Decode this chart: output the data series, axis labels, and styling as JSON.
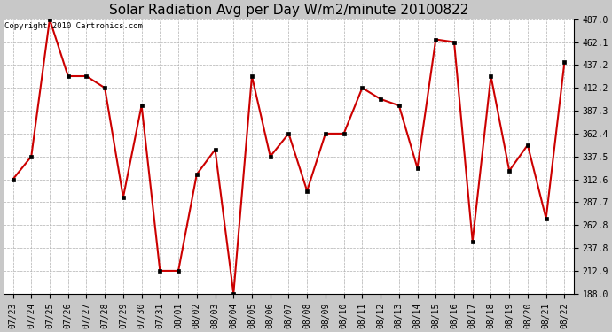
{
  "title": "Solar Radiation Avg per Day W/m2/minute 20100822",
  "copyright_text": "Copyright 2010 Cartronics.com",
  "labels": [
    "07/23",
    "07/24",
    "07/25",
    "07/26",
    "07/27",
    "07/28",
    "07/29",
    "07/30",
    "07/31",
    "08/01",
    "08/02",
    "08/03",
    "08/04",
    "08/05",
    "08/06",
    "08/07",
    "08/08",
    "08/09",
    "08/10",
    "08/11",
    "08/12",
    "08/13",
    "08/14",
    "08/15",
    "08/16",
    "08/17",
    "08/18",
    "08/19",
    "08/20",
    "08/21",
    "08/22"
  ],
  "values": [
    312.6,
    337.5,
    487.0,
    425.0,
    425.0,
    412.2,
    293.0,
    393.0,
    212.9,
    212.9,
    318.0,
    345.0,
    188.0,
    425.0,
    337.5,
    362.4,
    300.0,
    362.4,
    362.4,
    412.2,
    400.0,
    393.0,
    325.0,
    465.0,
    462.1,
    245.0,
    425.0,
    322.0,
    350.0,
    270.0,
    440.0
  ],
  "line_color": "#cc0000",
  "marker_color": "#000000",
  "bg_color": "#ffffff",
  "grid_color": "#b0b0b0",
  "ylim_min": 188.0,
  "ylim_max": 487.0,
  "yticks": [
    188.0,
    212.9,
    237.8,
    262.8,
    287.7,
    312.6,
    337.5,
    362.4,
    387.3,
    412.2,
    437.2,
    462.1,
    487.0
  ],
  "title_fontsize": 11,
  "copyright_fontsize": 6.5,
  "tick_fontsize": 7,
  "fig_bg_color": "#c8c8c8"
}
